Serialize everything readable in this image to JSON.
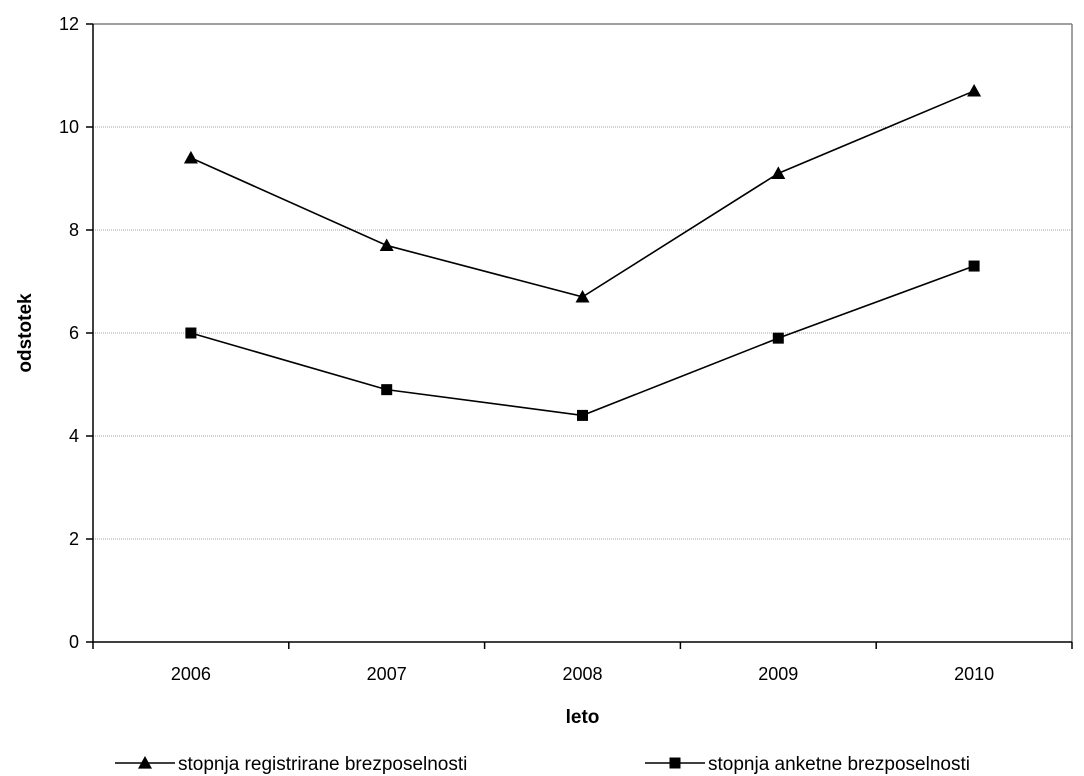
{
  "chart_data": {
    "type": "line",
    "title": "",
    "xlabel": "leto",
    "ylabel": "odstotek",
    "categories": [
      "2006",
      "2007",
      "2008",
      "2009",
      "2010"
    ],
    "ylim": [
      0,
      12
    ],
    "yticks": [
      0,
      2,
      4,
      6,
      8,
      10,
      12
    ],
    "ytick_labels": [
      "0",
      "2",
      "4",
      "6",
      "8",
      "10",
      "12"
    ],
    "grid": "horizontal",
    "legend_position": "bottom",
    "series": [
      {
        "name": "stopnja registrirane brezposelnosti",
        "marker": "triangle",
        "color": "#000000",
        "values": [
          9.4,
          7.7,
          6.7,
          9.1,
          10.7
        ]
      },
      {
        "name": "stopnja anketne brezposelnosti",
        "marker": "square",
        "color": "#000000",
        "values": [
          6.0,
          4.9,
          4.4,
          5.9,
          7.3
        ]
      }
    ]
  }
}
